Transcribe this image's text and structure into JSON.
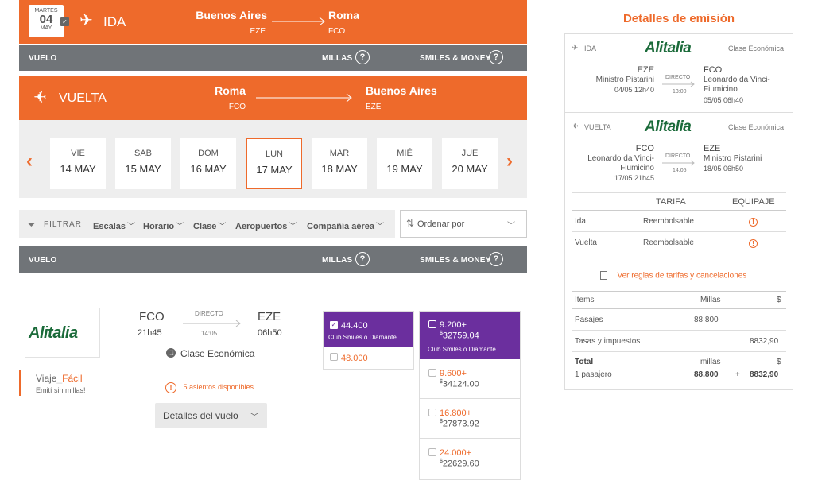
{
  "ida_bar": {
    "date_weekday": "MARTES",
    "date_day": "04",
    "date_month": "MAY",
    "label": "IDA",
    "from_city": "Buenos Aires",
    "from_code": "EZE",
    "to_city": "Roma",
    "to_code": "FCO"
  },
  "header_bar_1": {
    "vuelo": "VUELO",
    "millas": "MILLAS",
    "smiles_money": "SMILES & MONEY",
    "help": "?"
  },
  "vuelta_bar": {
    "label": "VUELTA",
    "from_city": "Roma",
    "from_code": "FCO",
    "to_city": "Buenos Aires",
    "to_code": "EZE"
  },
  "dates": [
    {
      "weekday": "VIE",
      "date": "14 MAY"
    },
    {
      "weekday": "SAB",
      "date": "15 MAY"
    },
    {
      "weekday": "DOM",
      "date": "16 MAY"
    },
    {
      "weekday": "LUN",
      "date": "17 MAY"
    },
    {
      "weekday": "MAR",
      "date": "18 MAY"
    },
    {
      "weekday": "MIÉ",
      "date": "19 MAY"
    },
    {
      "weekday": "JUE",
      "date": "20 MAY"
    }
  ],
  "filters": {
    "filtrar": "FILTRAR",
    "items": [
      "Escalas",
      "Horario",
      "Clase",
      "Aeropuertos",
      "Compañía aérea"
    ],
    "sort_label": "Ordenar por"
  },
  "header_bar_2": {
    "vuelo": "VUELO",
    "millas": "MILLAS",
    "smiles_money": "SMILES & MONEY",
    "help": "?"
  },
  "flight": {
    "airline": "Alitalia",
    "from_code": "FCO",
    "from_time": "21h45",
    "stops": "DIRECTO",
    "duration": "14:05",
    "to_code": "EZE",
    "to_time": "06h50",
    "cabin": "Clase Económica",
    "seats": "5 asientos disponibles",
    "details_button": "Detalles del vuelo",
    "promo_title_a": "Viaje",
    "promo_title_b": "Fácil",
    "promo_sub": "Emití sin millas!"
  },
  "miles_prices": [
    {
      "miles": "44.400",
      "club": "Club Smiles o Diamante"
    },
    {
      "miles": "48.000"
    }
  ],
  "money_prices": [
    {
      "miles": "9.200+",
      "money": "32759.04",
      "club": "Club Smiles o Diamante"
    },
    {
      "miles": "9.600+",
      "money": "34124.00"
    },
    {
      "miles": "16.800+",
      "money": "27873.92"
    },
    {
      "miles": "24.000+",
      "money": "22629.60"
    }
  ],
  "summary": {
    "title": "Detalles de emisión",
    "ida": {
      "label": "IDA",
      "airline": "Alitalia",
      "cabin": "Clase Económica",
      "from_code": "EZE",
      "from_name": "Ministro Pistarini",
      "from_datetime": "04/05 12h40",
      "stops": "DIRECTO",
      "duration": "13:00",
      "to_code": "FCO",
      "to_name_1": "Leonardo da Vinci-",
      "to_name_2": "Fiumicino",
      "to_datetime": "05/05 06h40"
    },
    "vuelta": {
      "label": "VUELTA",
      "airline": "Alitalia",
      "cabin": "Clase Económica",
      "from_code": "FCO",
      "from_name_1": "Leonardo da Vinci-",
      "from_name_2": "Fiumicino",
      "from_datetime": "17/05 21h45",
      "stops": "DIRECTO",
      "duration": "14:05",
      "to_code": "EZE",
      "to_name": "Ministro Pistarini",
      "to_datetime": "18/05 06h50"
    },
    "tarifa_header": "TARIFA",
    "equipaje_header": "EQUIPAJE",
    "ida_row": {
      "label": "Ida",
      "tarifa": "Reembolsable"
    },
    "vuelta_row": {
      "label": "Vuelta",
      "tarifa": "Reembolsable"
    },
    "rules_link": "Ver reglas de tarifas y cancelaciones",
    "items_header": "Items",
    "millas_header": "Millas",
    "money_header": "$",
    "pasajes_label": "Pasajes",
    "pasajes_millas": "88.800",
    "tasas_label": "Tasas y impuestos",
    "tasas_money": "8832,90",
    "total_label": "Total",
    "total_millas_unit": "millas",
    "total_money_unit": "$",
    "pasajero_label": "1 pasajero",
    "total_millas": "88.800",
    "plus": "+",
    "total_money": "8832,90"
  },
  "colors": {
    "accent": "#ee6a2b",
    "bar_grey": "#707478",
    "purple": "#6b2f9e",
    "green": "#1b6b3a"
  }
}
